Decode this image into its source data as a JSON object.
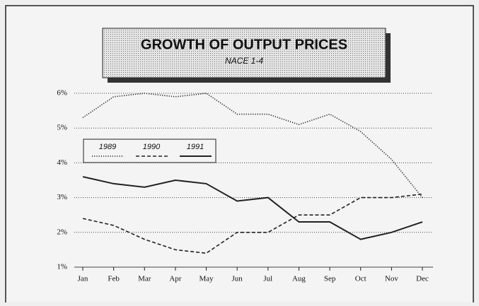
{
  "chart_data": {
    "type": "line",
    "title": "GROWTH OF OUTPUT PRICES",
    "subtitle": "NACE 1-4",
    "categories": [
      "Jan",
      "Feb",
      "Mar",
      "Apr",
      "May",
      "Jun",
      "Jul",
      "Aug",
      "Sep",
      "Oct",
      "Nov",
      "Dec"
    ],
    "series": [
      {
        "name": "1989",
        "color": "#222222",
        "style": "dotted",
        "values": [
          5.3,
          5.9,
          6.0,
          5.9,
          6.0,
          5.4,
          5.4,
          5.1,
          5.4,
          4.9,
          4.1,
          3.0
        ]
      },
      {
        "name": "1990",
        "color": "#222222",
        "style": "dashed",
        "values": [
          2.4,
          2.2,
          1.8,
          1.5,
          1.4,
          2.0,
          2.0,
          2.5,
          2.5,
          3.0,
          3.0,
          3.1
        ]
      },
      {
        "name": "1991",
        "color": "#222222",
        "style": "solid",
        "values": [
          3.6,
          3.4,
          3.3,
          3.5,
          3.4,
          2.9,
          3.0,
          2.3,
          2.3,
          1.8,
          2.0,
          2.3
        ]
      }
    ],
    "ylim": [
      1,
      6
    ],
    "yticks": [
      {
        "value": 1,
        "label": "1%"
      },
      {
        "value": 2,
        "label": "2%"
      },
      {
        "value": 3,
        "label": "3%"
      },
      {
        "value": 4,
        "label": "4%"
      },
      {
        "value": 5,
        "label": "5%"
      },
      {
        "value": 6,
        "label": "6%"
      }
    ],
    "grid": true
  }
}
